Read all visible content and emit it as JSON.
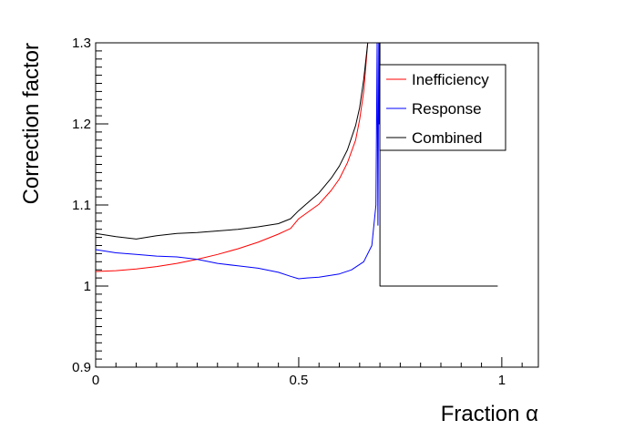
{
  "chart_data": {
    "type": "line",
    "title": "",
    "xlabel": "Fraction α",
    "ylabel": "Correction factor",
    "xlim": [
      0,
      1.09
    ],
    "ylim": [
      0.9,
      1.3
    ],
    "x_ticks": [
      0,
      0.5,
      1
    ],
    "x_tick_labels": [
      "0",
      "0.5",
      "1"
    ],
    "y_ticks": [
      0.9,
      1,
      1.1,
      1.2,
      1.3
    ],
    "y_tick_labels": [
      "0.9",
      "1",
      "1.1",
      "1.2",
      "1.3"
    ],
    "grid": false,
    "legend_position": "top-right",
    "series": [
      {
        "name": "Inefficiency",
        "color": "#ff0000",
        "x": [
          0,
          0.05,
          0.1,
          0.15,
          0.2,
          0.25,
          0.3,
          0.35,
          0.4,
          0.45,
          0.48,
          0.5,
          0.55,
          0.58,
          0.6,
          0.62,
          0.64,
          0.65,
          0.66,
          0.67
        ],
        "y": [
          1.018,
          1.019,
          1.021,
          1.024,
          1.028,
          1.033,
          1.039,
          1.046,
          1.054,
          1.064,
          1.071,
          1.083,
          1.101,
          1.118,
          1.132,
          1.152,
          1.18,
          1.205,
          1.24,
          1.3
        ]
      },
      {
        "name": "Response",
        "color": "#0000ff",
        "x": [
          0,
          0.05,
          0.1,
          0.15,
          0.2,
          0.25,
          0.3,
          0.35,
          0.4,
          0.45,
          0.48,
          0.5,
          0.52,
          0.55,
          0.6,
          0.63,
          0.66,
          0.68,
          0.69,
          0.693,
          0.695,
          0.697,
          0.698,
          0.699
        ],
        "y": [
          1.045,
          1.041,
          1.039,
          1.037,
          1.036,
          1.033,
          1.028,
          1.025,
          1.022,
          1.017,
          1.012,
          1.009,
          1.01,
          1.011,
          1.015,
          1.02,
          1.03,
          1.05,
          1.1,
          1.3,
          1.075,
          1.3,
          1.2,
          1.3
        ]
      },
      {
        "name": "Combined",
        "color": "#000000",
        "x": [
          0,
          0.05,
          0.1,
          0.15,
          0.2,
          0.25,
          0.3,
          0.35,
          0.4,
          0.45,
          0.48,
          0.5,
          0.55,
          0.58,
          0.6,
          0.62,
          0.64,
          0.65,
          0.66,
          0.67,
          0.695,
          0.7,
          0.7,
          0.75,
          0.8,
          0.85,
          0.9,
          0.95,
          0.99
        ],
        "y": [
          1.065,
          1.061,
          1.058,
          1.062,
          1.065,
          1.066,
          1.068,
          1.07,
          1.073,
          1.077,
          1.083,
          1.093,
          1.115,
          1.133,
          1.148,
          1.168,
          1.198,
          1.22,
          1.255,
          1.3,
          1.3,
          1.3,
          1.0,
          1.0,
          1.0,
          1.0,
          1.0,
          1.0,
          1.0
        ]
      }
    ]
  }
}
